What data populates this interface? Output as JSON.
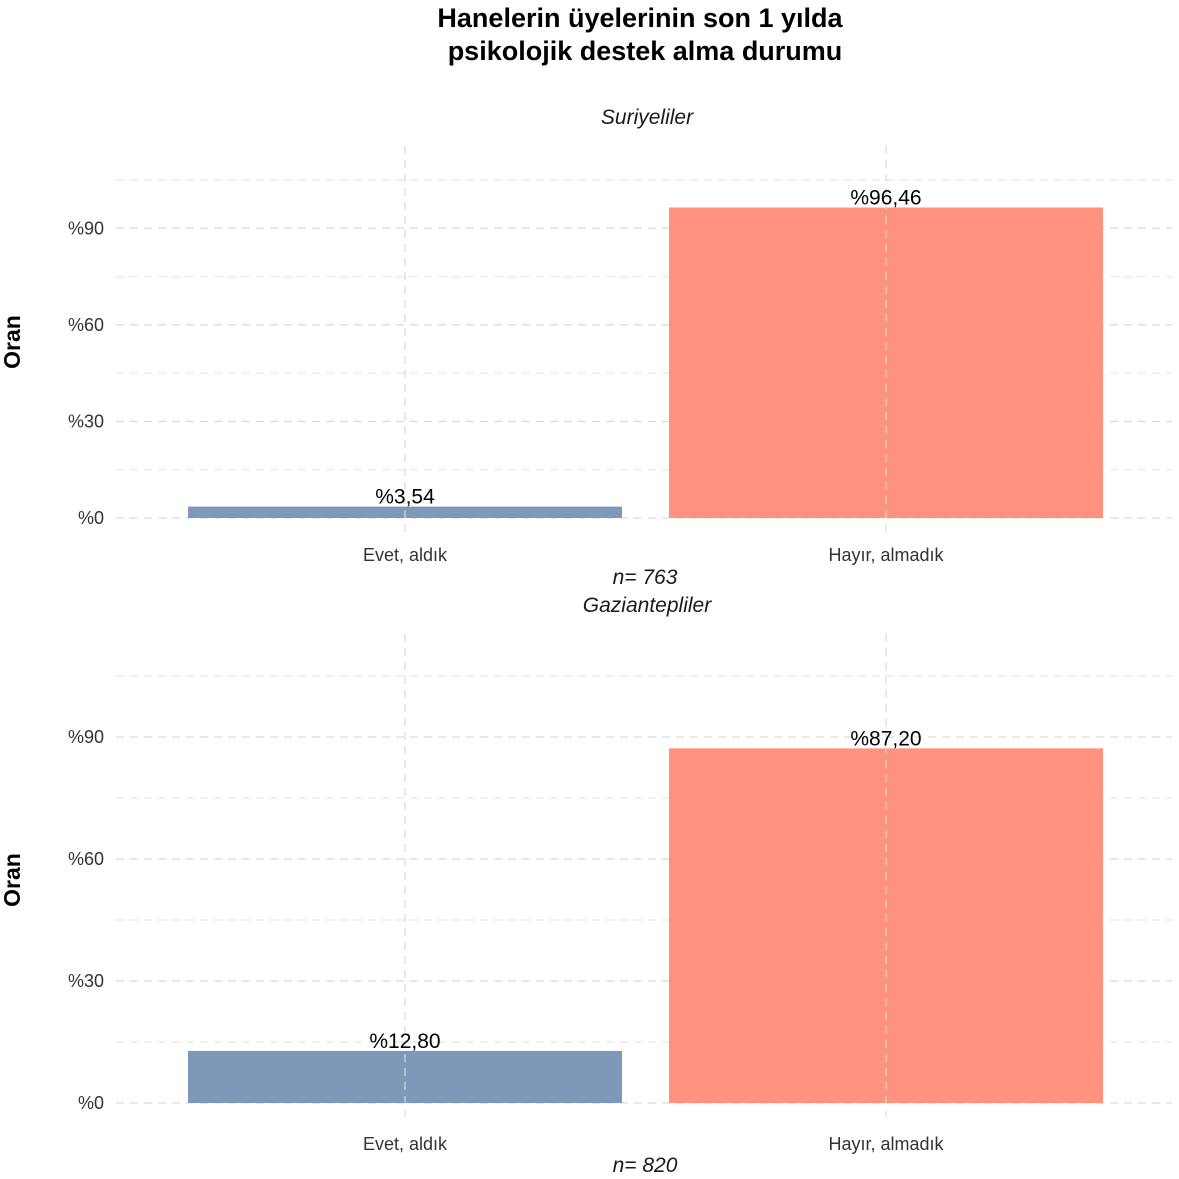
{
  "title": [
    "Hanelerin üyelerinin son 1 yılda",
    "psikolojik destek alma durumu"
  ],
  "colors": {
    "evet": "#7f98ba",
    "hayir": "#ff917f"
  },
  "chart_data": [
    {
      "type": "bar",
      "facet": "Suriyeliler",
      "categories": [
        "Evet, aldık",
        "Hayır, almadık"
      ],
      "values": [
        3.54,
        96.46
      ],
      "data_labels": [
        "%3,54",
        "%96,46"
      ],
      "ylabel": "Oran",
      "yticks": [
        0,
        30,
        60,
        90
      ],
      "ytick_labels": [
        "%0",
        "%30",
        "%60",
        "%90"
      ],
      "ylim": [
        0,
        105
      ],
      "grid": true,
      "n_label": "n=  763"
    },
    {
      "type": "bar",
      "facet": "Gaziantepliler",
      "categories": [
        "Evet, aldık",
        "Hayır, almadık"
      ],
      "values": [
        12.8,
        87.2
      ],
      "data_labels": [
        "%12,80",
        "%87,20"
      ],
      "ylabel": "Oran",
      "yticks": [
        0,
        30,
        60,
        90
      ],
      "ytick_labels": [
        "%0",
        "%30",
        "%60",
        "%90"
      ],
      "ylim": [
        0,
        105
      ],
      "grid": true,
      "n_label": "n=  820"
    }
  ]
}
